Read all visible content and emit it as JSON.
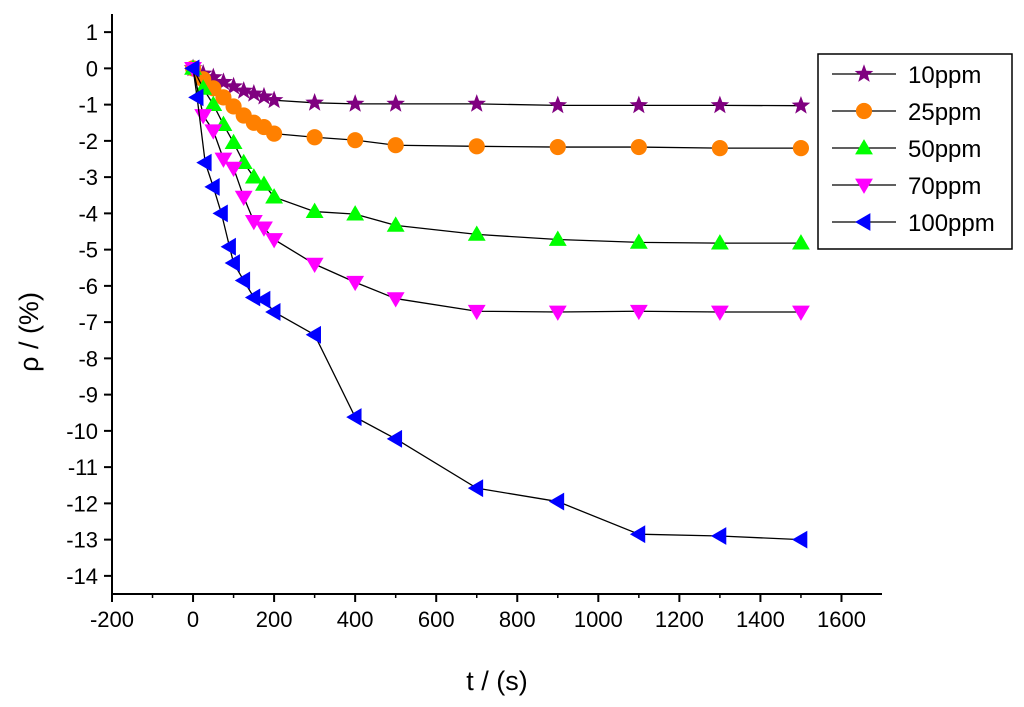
{
  "chart_data": {
    "type": "line",
    "title": "",
    "xlabel": "t / (s)",
    "ylabel": "ρ / (%)",
    "xlim": [
      -200,
      1700
    ],
    "ylim": [
      -14.5,
      1.5
    ],
    "x_ticks": [
      -200,
      0,
      200,
      400,
      600,
      800,
      1000,
      1200,
      1400,
      1600
    ],
    "x_tick_labels": [
      "-200",
      "0",
      "200",
      "400",
      "600",
      "800",
      "1000",
      "1200",
      "1400",
      "1600"
    ],
    "y_ticks": [
      1,
      0,
      -1,
      -2,
      -3,
      -4,
      -5,
      -6,
      -7,
      -8,
      -9,
      -10,
      -11,
      -12,
      -13,
      -14
    ],
    "y_tick_labels": [
      "1",
      "0",
      "-1",
      "-2",
      "-3",
      "-4",
      "-5",
      "-6",
      "-7",
      "-8",
      "-9",
      "-10",
      "-11",
      "-12",
      "-13",
      "-14"
    ],
    "grid": false,
    "legend_position": "top-right",
    "series": [
      {
        "name": "10ppm",
        "color": "#800080",
        "marker": "star",
        "x": [
          0,
          25,
          50,
          75,
          100,
          125,
          150,
          175,
          200,
          300,
          400,
          500,
          700,
          900,
          1100,
          1300,
          1500
        ],
        "y": [
          0,
          -0.15,
          -0.25,
          -0.38,
          -0.5,
          -0.62,
          -0.7,
          -0.78,
          -0.88,
          -0.95,
          -0.98,
          -0.98,
          -0.98,
          -1.02,
          -1.02,
          -1.02,
          -1.03
        ]
      },
      {
        "name": "25ppm",
        "color": "#FF8000",
        "marker": "circle",
        "x": [
          0,
          25,
          50,
          75,
          100,
          125,
          150,
          175,
          200,
          300,
          400,
          500,
          700,
          900,
          1100,
          1300,
          1500
        ],
        "y": [
          0,
          -0.3,
          -0.55,
          -0.8,
          -1.05,
          -1.3,
          -1.5,
          -1.62,
          -1.8,
          -1.9,
          -1.98,
          -2.12,
          -2.15,
          -2.17,
          -2.17,
          -2.2,
          -2.2
        ]
      },
      {
        "name": "50ppm",
        "color": "#00FF00",
        "marker": "triangle-up",
        "x": [
          0,
          25,
          50,
          75,
          100,
          125,
          150,
          175,
          200,
          300,
          400,
          500,
          700,
          900,
          1100,
          1300,
          1500
        ],
        "y": [
          0,
          -0.55,
          -1.0,
          -1.55,
          -2.05,
          -2.6,
          -3.0,
          -3.2,
          -3.55,
          -3.95,
          -4.02,
          -4.33,
          -4.58,
          -4.72,
          -4.8,
          -4.82,
          -4.82
        ]
      },
      {
        "name": "70ppm",
        "color": "#FF00FF",
        "marker": "triangle-down",
        "x": [
          0,
          25,
          50,
          75,
          100,
          125,
          150,
          175,
          200,
          300,
          400,
          500,
          700,
          900,
          1100,
          1300,
          1500
        ],
        "y": [
          0,
          -1.3,
          -1.72,
          -2.5,
          -2.75,
          -3.55,
          -4.22,
          -4.4,
          -4.72,
          -5.4,
          -5.9,
          -6.35,
          -6.7,
          -6.72,
          -6.7,
          -6.72,
          -6.72
        ]
      },
      {
        "name": "100ppm",
        "color": "#0000FF",
        "marker": "triangle-left",
        "x": [
          0,
          10,
          30,
          50,
          70,
          90,
          100,
          125,
          150,
          175,
          200,
          300,
          400,
          500,
          700,
          900,
          1100,
          1300,
          1500
        ],
        "y": [
          0,
          -0.8,
          -2.6,
          -3.27,
          -4.0,
          -4.92,
          -5.37,
          -5.85,
          -6.32,
          -6.38,
          -6.72,
          -7.35,
          -9.62,
          -10.22,
          -11.58,
          -11.95,
          -12.85,
          -12.9,
          -13.0
        ]
      }
    ]
  }
}
